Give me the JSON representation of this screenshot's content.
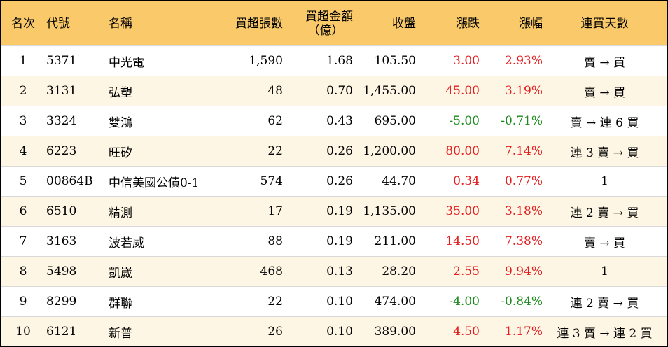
{
  "headers": {
    "rank": "名次",
    "code": "代號",
    "name": "名稱",
    "net_lots": "買超張數",
    "net_amount_l1": "買超金額",
    "net_amount_l2": "（億）",
    "close": "收盤",
    "change": "漲跌",
    "change_pct": "漲幅",
    "consecutive": "連買天數"
  },
  "colors": {
    "header_bg": "#f9c96a",
    "row_odd_bg": "#fef6e4",
    "row_even_bg": "#ffffff",
    "positive": "#e41a1c",
    "negative": "#1a8a1a"
  },
  "rows": [
    {
      "rank": "1",
      "code": "5371",
      "name": "中光電",
      "net_lots": "1,590",
      "net_amount": "1.68",
      "close": "105.50",
      "change": "3.00",
      "change_pct": "2.93%",
      "consecutive": "賣 → 買",
      "direction": "up"
    },
    {
      "rank": "2",
      "code": "3131",
      "name": "弘塑",
      "net_lots": "48",
      "net_amount": "0.70",
      "close": "1,455.00",
      "change": "45.00",
      "change_pct": "3.19%",
      "consecutive": "賣 → 買",
      "direction": "up"
    },
    {
      "rank": "3",
      "code": "3324",
      "name": "雙鴻",
      "net_lots": "62",
      "net_amount": "0.43",
      "close": "695.00",
      "change": "-5.00",
      "change_pct": "-0.71%",
      "consecutive": "賣 → 連 6 買",
      "direction": "down"
    },
    {
      "rank": "4",
      "code": "6223",
      "name": "旺矽",
      "net_lots": "22",
      "net_amount": "0.26",
      "close": "1,200.00",
      "change": "80.00",
      "change_pct": "7.14%",
      "consecutive": "連 3 賣 → 買",
      "direction": "up"
    },
    {
      "rank": "5",
      "code": "00864B",
      "name": "中信美國公債0-1",
      "net_lots": "574",
      "net_amount": "0.26",
      "close": "44.70",
      "change": "0.34",
      "change_pct": "0.77%",
      "consecutive": "1",
      "direction": "up"
    },
    {
      "rank": "6",
      "code": "6510",
      "name": "精測",
      "net_lots": "17",
      "net_amount": "0.19",
      "close": "1,135.00",
      "change": "35.00",
      "change_pct": "3.18%",
      "consecutive": "連 2 賣 → 買",
      "direction": "up"
    },
    {
      "rank": "7",
      "code": "3163",
      "name": "波若威",
      "net_lots": "88",
      "net_amount": "0.19",
      "close": "211.00",
      "change": "14.50",
      "change_pct": "7.38%",
      "consecutive": "賣 → 買",
      "direction": "up"
    },
    {
      "rank": "8",
      "code": "5498",
      "name": "凱崴",
      "net_lots": "468",
      "net_amount": "0.13",
      "close": "28.20",
      "change": "2.55",
      "change_pct": "9.94%",
      "consecutive": "1",
      "direction": "up"
    },
    {
      "rank": "9",
      "code": "8299",
      "name": "群聯",
      "net_lots": "22",
      "net_amount": "0.10",
      "close": "474.00",
      "change": "-4.00",
      "change_pct": "-0.84%",
      "consecutive": "連 2 賣 → 買",
      "direction": "down"
    },
    {
      "rank": "10",
      "code": "6121",
      "name": "新普",
      "net_lots": "26",
      "net_amount": "0.10",
      "close": "389.00",
      "change": "4.50",
      "change_pct": "1.17%",
      "consecutive": "連 3 賣 → 連 2 買",
      "direction": "up"
    }
  ]
}
